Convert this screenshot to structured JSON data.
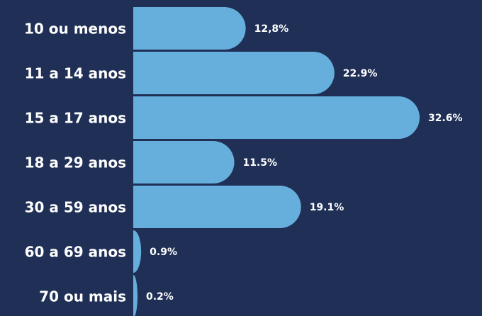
{
  "chart_data": {
    "type": "bar",
    "orientation": "horizontal",
    "categories": [
      "10 ou menos",
      "11 a 14 anos",
      "15 a 17 anos",
      "18 a 29 anos",
      "30 a 59 anos",
      "60 a 69 anos",
      "70 ou mais"
    ],
    "values": [
      12.8,
      22.9,
      32.6,
      11.5,
      19.1,
      0.9,
      0.2
    ],
    "value_labels": [
      "12,8%",
      "22.9%",
      "32.6%",
      "11.5%",
      "19.1%",
      "0.9%",
      "0.2%"
    ],
    "color": "#66aedb"
  }
}
